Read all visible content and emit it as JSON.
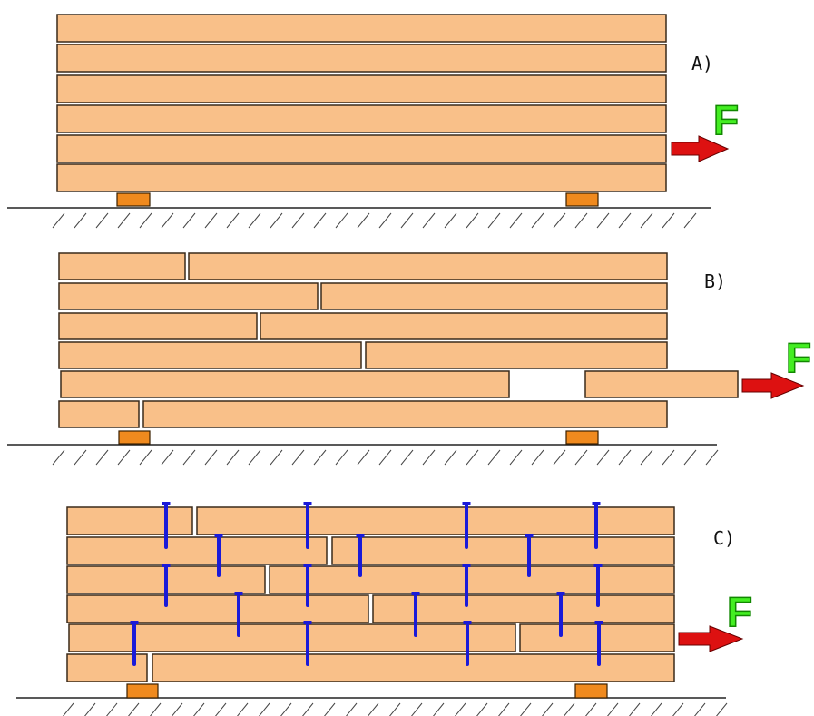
{
  "colors": {
    "plank_fill": "#f9c089",
    "plank_stroke": "#3a2a1a",
    "support_fill": "#f08a1e",
    "ground": "#222222",
    "hatch": "#444444",
    "nail": "#1a1ad8",
    "arrow": "#dd1111",
    "force_letter": "#44ee22"
  },
  "panels": [
    {
      "id": "A",
      "label": "A)",
      "force_label": "F"
    },
    {
      "id": "B",
      "label": "B)",
      "force_label": "F"
    },
    {
      "id": "C",
      "label": "C)",
      "force_label": "F"
    }
  ],
  "icons": {
    "arrow": "force-arrow-icon",
    "nail": "nail-icon",
    "support": "support-block"
  }
}
